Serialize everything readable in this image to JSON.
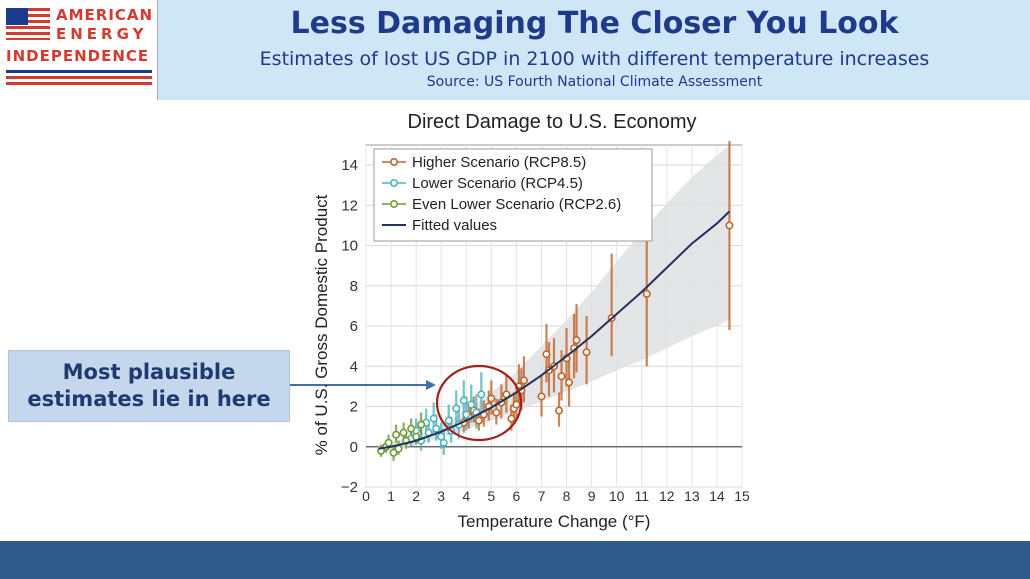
{
  "logo": {
    "line1": "AMERICAN",
    "line2": "ENERGY",
    "line3": "INDEPENDENCE"
  },
  "header": {
    "title": "Less Damaging The Closer You Look",
    "subtitle": "Estimates of lost US GDP in 2100 with different temperature increases",
    "source": "Source: US Fourth National Climate Assessment"
  },
  "callout": {
    "line1": "Most plausible",
    "line2": "estimates lie in here"
  },
  "colors": {
    "higher": "#c0652c",
    "lower": "#4fb3b8",
    "evenLower": "#6e9a3a",
    "fitted": "#26305e",
    "band": "#dfe1e3",
    "circle": "#a3201c",
    "arrow": "#3f6fb0"
  },
  "chart_data": {
    "type": "scatter",
    "title": "Direct Damage to U.S. Economy",
    "xlabel": "Temperature Change (°F)",
    "ylabel": "% of U.S. Gross Domestic Product",
    "xlim": [
      0,
      15
    ],
    "ylim": [
      -2,
      15
    ],
    "xticks": [
      0,
      1,
      2,
      3,
      4,
      5,
      6,
      7,
      8,
      9,
      10,
      11,
      12,
      13,
      14,
      15
    ],
    "yticks": [
      -2,
      0,
      2,
      4,
      6,
      8,
      10,
      12,
      14
    ],
    "grid": true,
    "legend_position": "top-left",
    "legend": [
      "Higher Scenario (RCP8.5)",
      "Lower Scenario (RCP4.5)",
      "Even Lower Scenario (RCP2.6)",
      "Fitted values"
    ],
    "series": [
      {
        "name": "Higher Scenario (RCP8.5)",
        "color": "#c0652c",
        "points": [
          [
            3.9,
            1.2
          ],
          [
            4.1,
            1.5
          ],
          [
            4.3,
            1.8
          ],
          [
            4.5,
            1.3
          ],
          [
            4.7,
            1.6
          ],
          [
            4.9,
            2.0
          ],
          [
            5.0,
            2.4
          ],
          [
            5.2,
            1.7
          ],
          [
            5.4,
            2.2
          ],
          [
            5.6,
            2.6
          ],
          [
            5.8,
            1.4
          ],
          [
            5.9,
            1.9
          ],
          [
            6.0,
            2.1
          ],
          [
            6.1,
            3.0
          ],
          [
            6.2,
            2.8
          ],
          [
            6.3,
            3.3
          ],
          [
            7.0,
            2.5
          ],
          [
            7.2,
            4.6
          ],
          [
            7.3,
            3.8
          ],
          [
            7.5,
            4.0
          ],
          [
            7.7,
            1.8
          ],
          [
            7.8,
            3.5
          ],
          [
            8.0,
            4.4
          ],
          [
            8.1,
            3.2
          ],
          [
            8.3,
            4.9
          ],
          [
            8.4,
            5.3
          ],
          [
            8.8,
            4.7
          ],
          [
            9.8,
            6.4
          ],
          [
            11.2,
            7.6
          ],
          [
            14.5,
            11.0
          ]
        ],
        "err_low": [
          0.5,
          0.6,
          0.6,
          0.5,
          0.6,
          0.7,
          0.8,
          0.6,
          0.8,
          0.9,
          0.6,
          0.7,
          0.8,
          1.0,
          1.0,
          1.1,
          1.0,
          1.4,
          1.3,
          1.3,
          0.8,
          1.2,
          1.4,
          1.2,
          1.5,
          1.6,
          1.6,
          1.9,
          3.6,
          5.2
        ],
        "err_high": [
          0.6,
          0.7,
          0.7,
          0.6,
          0.7,
          0.8,
          0.9,
          0.7,
          0.9,
          1.0,
          0.7,
          0.8,
          0.9,
          1.1,
          1.1,
          1.2,
          1.1,
          1.5,
          1.4,
          1.4,
          0.9,
          1.3,
          1.5,
          1.3,
          1.7,
          1.8,
          1.8,
          3.2,
          3.4,
          4.2
        ]
      },
      {
        "name": "Lower Scenario (RCP4.5)",
        "color": "#4fb3b8",
        "points": [
          [
            1.8,
            0.4
          ],
          [
            2.0,
            0.8
          ],
          [
            2.2,
            0.3
          ],
          [
            2.4,
            1.2
          ],
          [
            2.5,
            0.7
          ],
          [
            2.7,
            1.4
          ],
          [
            2.8,
            0.9
          ],
          [
            3.0,
            0.5
          ],
          [
            3.1,
            0.2
          ],
          [
            3.3,
            1.3
          ],
          [
            3.4,
            0.8
          ],
          [
            3.6,
            1.9
          ],
          [
            3.7,
            1.1
          ],
          [
            3.9,
            2.3
          ],
          [
            4.0,
            1.6
          ],
          [
            4.2,
            2.1
          ],
          [
            4.4,
            1.7
          ],
          [
            4.6,
            2.6
          ]
        ],
        "err_low": [
          0.4,
          0.5,
          0.5,
          0.6,
          0.5,
          0.7,
          0.6,
          0.6,
          0.6,
          0.7,
          0.6,
          0.8,
          0.7,
          0.9,
          0.8,
          0.9,
          0.8,
          1.0
        ],
        "err_high": [
          0.5,
          0.6,
          0.6,
          0.7,
          0.6,
          0.8,
          0.7,
          0.7,
          0.7,
          0.8,
          0.7,
          0.9,
          0.8,
          1.0,
          0.9,
          1.0,
          0.9,
          1.1
        ]
      },
      {
        "name": "Even Lower Scenario (RCP2.6)",
        "color": "#6e9a3a",
        "points": [
          [
            0.6,
            -0.2
          ],
          [
            0.8,
            0.0
          ],
          [
            0.9,
            0.2
          ],
          [
            1.1,
            -0.3
          ],
          [
            1.2,
            0.6
          ],
          [
            1.3,
            -0.1
          ],
          [
            1.5,
            0.7
          ],
          [
            1.6,
            0.3
          ],
          [
            1.8,
            0.9
          ],
          [
            2.0,
            0.5
          ],
          [
            2.2,
            1.1
          ]
        ],
        "err_low": [
          0.3,
          0.3,
          0.3,
          0.4,
          0.4,
          0.3,
          0.4,
          0.4,
          0.4,
          0.4,
          0.5
        ],
        "err_high": [
          0.3,
          0.3,
          0.4,
          0.4,
          0.5,
          0.4,
          0.5,
          0.4,
          0.5,
          0.5,
          0.6
        ]
      }
    ],
    "fitted": {
      "x": [
        0.5,
        1,
        2,
        3,
        4,
        5,
        6,
        7,
        8,
        9,
        10,
        11,
        12,
        13,
        14,
        14.5
      ],
      "y": [
        -0.1,
        0.0,
        0.3,
        0.75,
        1.3,
        1.95,
        2.7,
        3.55,
        4.5,
        5.5,
        6.6,
        7.7,
        8.9,
        10.1,
        11.1,
        11.7
      ],
      "band_low": [
        -0.3,
        -0.2,
        0.1,
        0.45,
        0.85,
        1.3,
        1.75,
        2.25,
        2.75,
        3.25,
        3.8,
        4.3,
        4.9,
        5.5,
        6.0,
        6.3
      ],
      "band_high": [
        0.1,
        0.25,
        0.55,
        1.05,
        1.8,
        2.7,
        3.75,
        5.0,
        6.3,
        7.7,
        9.2,
        10.7,
        12.1,
        13.4,
        14.5,
        15.0
      ]
    }
  }
}
